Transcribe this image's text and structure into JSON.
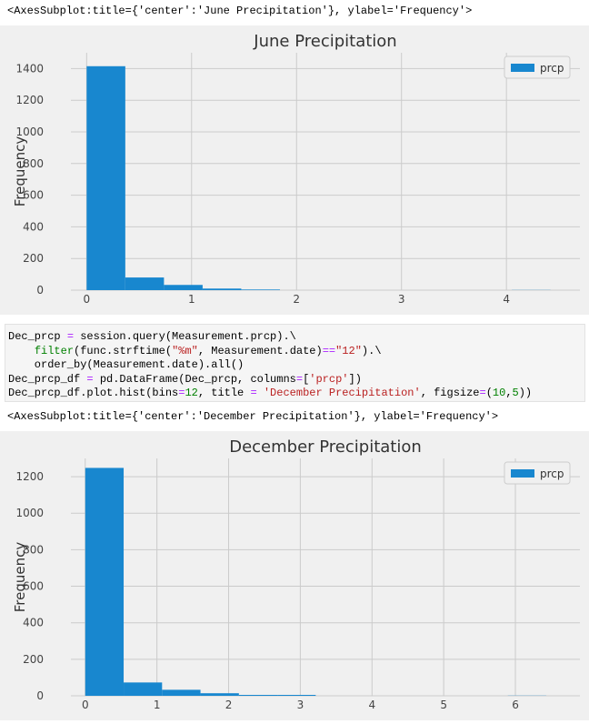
{
  "outputs": [
    "<AxesSubplot:title={'center':'June Precipitation'}, ylabel='Frequency'>",
    "<AxesSubplot:title={'center':'December Precipitation'}, ylabel='Frequency'>"
  ],
  "code_cell": {
    "lines": [
      [
        {
          "t": "Dec_prcp ",
          "c": "#000000"
        },
        {
          "t": "=",
          "c": "#aa22ff"
        },
        {
          "t": " session.query(Measurement.prcp).\\",
          "c": "#000000"
        }
      ],
      [
        {
          "t": "    ",
          "c": "#000000"
        },
        {
          "t": "filter",
          "c": "#008000"
        },
        {
          "t": "(func.strftime(",
          "c": "#000000"
        },
        {
          "t": "\"%m\"",
          "c": "#ba2121"
        },
        {
          "t": ", Measurement.date)",
          "c": "#000000"
        },
        {
          "t": "==",
          "c": "#aa22ff"
        },
        {
          "t": "\"12\"",
          "c": "#ba2121"
        },
        {
          "t": ").\\",
          "c": "#000000"
        }
      ],
      [
        {
          "t": "    order_by(Measurement.date).all()",
          "c": "#000000"
        }
      ],
      [
        {
          "t": "Dec_prcp_df ",
          "c": "#000000"
        },
        {
          "t": "=",
          "c": "#aa22ff"
        },
        {
          "t": " pd.DataFrame(Dec_prcp, columns",
          "c": "#000000"
        },
        {
          "t": "=",
          "c": "#aa22ff"
        },
        {
          "t": "[",
          "c": "#000000"
        },
        {
          "t": "'prcp'",
          "c": "#ba2121"
        },
        {
          "t": "])",
          "c": "#000000"
        }
      ],
      [
        {
          "t": "Dec_prcp_df.plot.hist(bins",
          "c": "#000000"
        },
        {
          "t": "=",
          "c": "#aa22ff"
        },
        {
          "t": "12",
          "c": "#008000"
        },
        {
          "t": ", title ",
          "c": "#000000"
        },
        {
          "t": "=",
          "c": "#aa22ff"
        },
        {
          "t": " ",
          "c": "#000000"
        },
        {
          "t": "'December Precipitation'",
          "c": "#ba2121"
        },
        {
          "t": ", figsize",
          "c": "#000000"
        },
        {
          "t": "=",
          "c": "#aa22ff"
        },
        {
          "t": "(",
          "c": "#000000"
        },
        {
          "t": "10",
          "c": "#008000"
        },
        {
          "t": ",",
          "c": "#000000"
        },
        {
          "t": "5",
          "c": "#008000"
        },
        {
          "t": "))",
          "c": "#000000"
        }
      ]
    ]
  },
  "colors": {
    "bar": "#1887cf",
    "plot_bg": "#f0f0f0",
    "grid": "#cbcbcb"
  },
  "chart_data": [
    {
      "type": "bar",
      "title": "June Precipitation",
      "ylabel": "Frequency",
      "legend": [
        "prcp"
      ],
      "legend_position": "top-right",
      "grid": true,
      "xlim": [
        -0.15,
        4.7
      ],
      "ylim": [
        0,
        1500
      ],
      "xticks": [
        0,
        1,
        2,
        3,
        4
      ],
      "yticks": [
        0,
        200,
        400,
        600,
        800,
        1000,
        1200,
        1400
      ],
      "bins": [
        {
          "x0": 0.0,
          "x1": 0.3683,
          "y": 1415
        },
        {
          "x0": 0.3683,
          "x1": 0.7367,
          "y": 80
        },
        {
          "x0": 0.7367,
          "x1": 1.105,
          "y": 33
        },
        {
          "x0": 1.105,
          "x1": 1.4733,
          "y": 10
        },
        {
          "x0": 1.4733,
          "x1": 1.8417,
          "y": 4
        },
        {
          "x0": 1.8417,
          "x1": 2.21,
          "y": 0
        },
        {
          "x0": 2.21,
          "x1": 2.5783,
          "y": 0
        },
        {
          "x0": 2.5783,
          "x1": 2.9467,
          "y": 0
        },
        {
          "x0": 2.9467,
          "x1": 3.315,
          "y": 0
        },
        {
          "x0": 3.315,
          "x1": 3.6833,
          "y": 0
        },
        {
          "x0": 3.6833,
          "x1": 4.0517,
          "y": 0
        },
        {
          "x0": 4.0517,
          "x1": 4.42,
          "y": 1
        }
      ]
    },
    {
      "type": "bar",
      "title": "December Precipitation",
      "ylabel": "Frequency",
      "legend": [
        "prcp"
      ],
      "legend_position": "top-right",
      "grid": true,
      "xlim": [
        -0.2,
        6.9
      ],
      "ylim": [
        0,
        1300
      ],
      "xticks": [
        0,
        1,
        2,
        3,
        4,
        5,
        6
      ],
      "yticks": [
        0,
        200,
        400,
        600,
        800,
        1000,
        1200
      ],
      "bins": [
        {
          "x0": 0.0,
          "x1": 0.5358,
          "y": 1248
        },
        {
          "x0": 0.5358,
          "x1": 1.0717,
          "y": 73
        },
        {
          "x0": 1.0717,
          "x1": 1.6075,
          "y": 33
        },
        {
          "x0": 1.6075,
          "x1": 2.1433,
          "y": 14
        },
        {
          "x0": 2.1433,
          "x1": 2.6792,
          "y": 5
        },
        {
          "x0": 2.6792,
          "x1": 3.215,
          "y": 5
        },
        {
          "x0": 3.215,
          "x1": 3.7508,
          "y": 0
        },
        {
          "x0": 3.7508,
          "x1": 4.2867,
          "y": 0
        },
        {
          "x0": 4.2867,
          "x1": 4.8225,
          "y": 0
        },
        {
          "x0": 4.8225,
          "x1": 5.3583,
          "y": 0
        },
        {
          "x0": 5.3583,
          "x1": 5.8942,
          "y": 0
        },
        {
          "x0": 5.8942,
          "x1": 6.43,
          "y": 1
        }
      ]
    }
  ]
}
